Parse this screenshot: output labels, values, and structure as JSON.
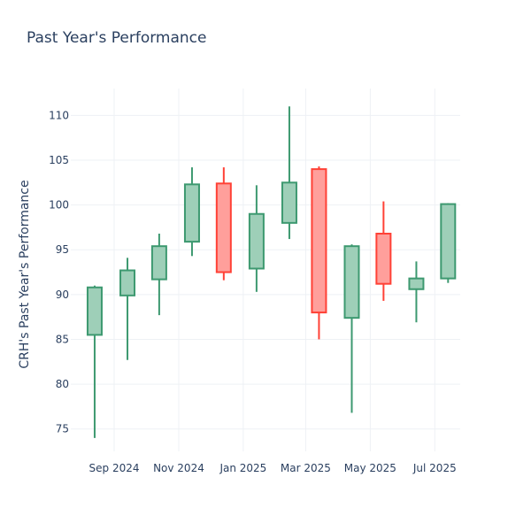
{
  "chart_data": {
    "type": "candlestick",
    "title": "Past Year's Performance",
    "xlabel": "",
    "ylabel": "CRH's Past Year's Performance",
    "ylim": [
      72.5,
      113
    ],
    "yticks": [
      75,
      80,
      85,
      90,
      95,
      100,
      105,
      110
    ],
    "x_range": [
      "2024-07-22",
      "2025-07-25"
    ],
    "x_ticks": [
      {
        "date": "2024-09-01",
        "label": "Sep 2024"
      },
      {
        "date": "2024-11-01",
        "label": "Nov 2024"
      },
      {
        "date": "2025-01-01",
        "label": "Jan 2025"
      },
      {
        "date": "2025-03-01",
        "label": "Mar 2025"
      },
      {
        "date": "2025-05-01",
        "label": "May 2025"
      },
      {
        "date": "2025-07-01",
        "label": "Jul 2025"
      }
    ],
    "grid": true,
    "colors": {
      "increasing": "#3d9970",
      "increasing_fill": "#9ecfb8",
      "decreasing": "#ff4136",
      "decreasing_fill": "#ff9f9b",
      "grid": "#eef1f5",
      "text": "#2a3f5f"
    },
    "candles": [
      {
        "date": "2024-08-01",
        "open": 85.5,
        "high": 91.0,
        "low": 74.0,
        "close": 90.8
      },
      {
        "date": "2024-09-01",
        "open": 89.9,
        "high": 94.1,
        "low": 82.7,
        "close": 92.7
      },
      {
        "date": "2024-10-01",
        "open": 91.7,
        "high": 96.8,
        "low": 87.7,
        "close": 95.4
      },
      {
        "date": "2024-11-01",
        "open": 95.9,
        "high": 104.2,
        "low": 94.3,
        "close": 102.3
      },
      {
        "date": "2024-12-01",
        "open": 102.4,
        "high": 104.2,
        "low": 91.6,
        "close": 92.5
      },
      {
        "date": "2025-01-01",
        "open": 92.9,
        "high": 102.2,
        "low": 90.3,
        "close": 99.0
      },
      {
        "date": "2025-02-01",
        "open": 98.0,
        "high": 111.0,
        "low": 96.2,
        "close": 102.5
      },
      {
        "date": "2025-03-01",
        "open": 104.0,
        "high": 104.3,
        "low": 85.0,
        "close": 88.0
      },
      {
        "date": "2025-04-01",
        "open": 87.4,
        "high": 95.6,
        "low": 76.8,
        "close": 95.4
      },
      {
        "date": "2025-05-01",
        "open": 96.8,
        "high": 100.4,
        "low": 89.3,
        "close": 91.2
      },
      {
        "date": "2025-06-01",
        "open": 90.6,
        "high": 93.7,
        "low": 86.9,
        "close": 91.8
      },
      {
        "date": "2025-07-01",
        "open": 91.8,
        "high": 100.2,
        "low": 91.3,
        "close": 100.1
      }
    ]
  }
}
